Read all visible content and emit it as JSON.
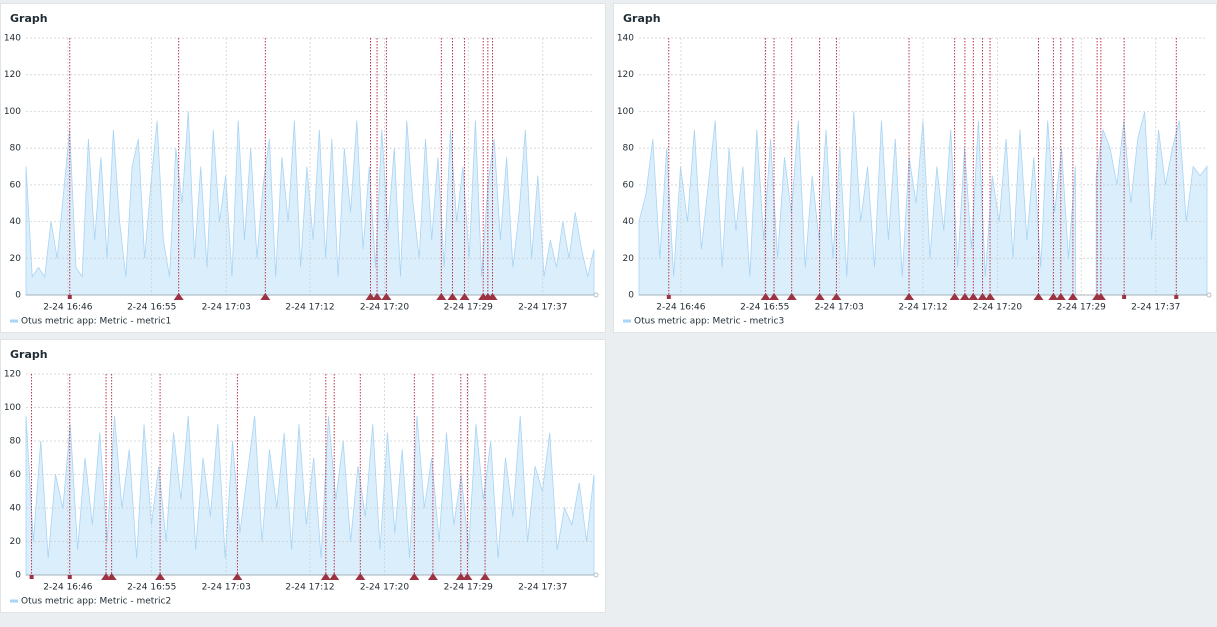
{
  "widgets": [
    {
      "title": "Graph",
      "legend": "Otus metric app: Metric - metric1",
      "ylim": [
        0,
        140
      ],
      "yticks": [
        0,
        20,
        40,
        60,
        80,
        100,
        120,
        140
      ],
      "xlim": [
        1001.5,
        1062.5
      ],
      "xticks": [
        {
          "value": 1006,
          "label": "2-24 16:46"
        },
        {
          "value": 1015,
          "label": "2-24 16:55"
        },
        {
          "value": 1023,
          "label": "2-24 17:03"
        },
        {
          "value": 1032,
          "label": "2-24 17:12"
        },
        {
          "value": 1040,
          "label": "2-24 17:20"
        },
        {
          "value": 1049,
          "label": "2-24 17:29"
        },
        {
          "value": 1057,
          "label": "2-24 17:37"
        }
      ],
      "series": {
        "color": "#a8d4f5",
        "fill": "#dbeefc",
        "values": [
          70,
          10,
          15,
          10,
          40,
          20,
          55,
          90,
          15,
          10,
          85,
          30,
          75,
          20,
          90,
          40,
          10,
          70,
          85,
          20,
          60,
          95,
          30,
          10,
          80,
          50,
          100,
          20,
          70,
          15,
          90,
          40,
          65,
          10,
          95,
          30,
          80,
          20,
          60,
          85,
          10,
          75,
          40,
          95,
          15,
          70,
          30,
          90,
          20,
          85,
          10,
          80,
          45,
          95,
          25,
          70,
          15,
          90,
          35,
          80,
          10,
          95,
          50,
          20,
          85,
          30,
          75,
          15,
          90,
          40,
          70,
          20,
          95,
          10,
          60,
          85,
          30,
          75,
          15,
          45,
          90,
          20,
          65,
          10,
          30,
          15,
          40,
          20,
          45,
          25,
          10,
          25
        ]
      },
      "events": [
        {
          "x": 1006.2,
          "shape": "square"
        },
        {
          "x": 1017.9,
          "shape": "triangle"
        },
        {
          "x": 1027.2,
          "shape": "triangle"
        },
        {
          "x": 1038.5,
          "shape": "triangle"
        },
        {
          "x": 1039.2,
          "shape": "triangle"
        },
        {
          "x": 1040.2,
          "shape": "triangle"
        },
        {
          "x": 1046.1,
          "shape": "triangle"
        },
        {
          "x": 1047.3,
          "shape": "triangle"
        },
        {
          "x": 1048.6,
          "shape": "triangle"
        },
        {
          "x": 1050.6,
          "shape": "triangle"
        },
        {
          "x": 1051.1,
          "shape": "triangle"
        },
        {
          "x": 1051.6,
          "shape": "triangle"
        }
      ]
    },
    {
      "title": "Graph",
      "legend": "Otus metric app: Metric - metric3",
      "ylim": [
        0,
        140
      ],
      "yticks": [
        0,
        20,
        40,
        60,
        80,
        100,
        120,
        140
      ],
      "xlim": [
        1001.5,
        1062.5
      ],
      "xticks": [
        {
          "value": 1006,
          "label": "2-24 16:46"
        },
        {
          "value": 1015,
          "label": "2-24 16:55"
        },
        {
          "value": 1023,
          "label": "2-24 17:03"
        },
        {
          "value": 1032,
          "label": "2-24 17:12"
        },
        {
          "value": 1040,
          "label": "2-24 17:20"
        },
        {
          "value": 1049,
          "label": "2-24 17:29"
        },
        {
          "value": 1057,
          "label": "2-24 17:37"
        }
      ],
      "series": {
        "color": "#a8d4f5",
        "fill": "#dbeefc",
        "values": [
          40,
          55,
          85,
          20,
          80,
          10,
          70,
          40,
          90,
          25,
          60,
          95,
          15,
          80,
          35,
          70,
          10,
          90,
          30,
          85,
          20,
          75,
          45,
          95,
          15,
          65,
          30,
          90,
          20,
          80,
          10,
          100,
          40,
          70,
          15,
          95,
          30,
          85,
          10,
          75,
          50,
          95,
          20,
          70,
          35,
          90,
          15,
          80,
          25,
          95,
          10,
          65,
          40,
          85,
          20,
          90,
          30,
          75,
          15,
          95,
          45,
          80,
          20,
          70,
          null,
          null,
          65,
          90,
          80,
          60,
          95,
          50,
          85,
          100,
          30,
          90,
          60,
          80,
          95,
          40,
          70,
          65,
          70
        ]
      },
      "events": [
        {
          "x": 1004.7,
          "shape": "square"
        },
        {
          "x": 1015.1,
          "shape": "triangle"
        },
        {
          "x": 1016.0,
          "shape": "triangle"
        },
        {
          "x": 1017.9,
          "shape": "triangle"
        },
        {
          "x": 1020.9,
          "shape": "triangle"
        },
        {
          "x": 1022.7,
          "shape": "triangle"
        },
        {
          "x": 1030.5,
          "shape": "triangle"
        },
        {
          "x": 1035.4,
          "shape": "triangle"
        },
        {
          "x": 1036.5,
          "shape": "triangle"
        },
        {
          "x": 1037.4,
          "shape": "triangle"
        },
        {
          "x": 1038.4,
          "shape": "triangle"
        },
        {
          "x": 1039.2,
          "shape": "triangle"
        },
        {
          "x": 1044.4,
          "shape": "triangle"
        },
        {
          "x": 1046.0,
          "shape": "triangle"
        },
        {
          "x": 1046.8,
          "shape": "triangle"
        },
        {
          "x": 1048.1,
          "shape": "triangle"
        },
        {
          "x": 1050.7,
          "shape": "triangle"
        },
        {
          "x": 1051.1,
          "shape": "triangle"
        },
        {
          "x": 1053.6,
          "shape": "square"
        },
        {
          "x": 1059.2,
          "shape": "square"
        }
      ]
    },
    {
      "title": "Graph",
      "legend": "Otus metric app: Metric - metric2",
      "ylim": [
        0,
        120
      ],
      "yticks": [
        0,
        20,
        40,
        60,
        80,
        100,
        120
      ],
      "xlim": [
        1001.5,
        1062.5
      ],
      "xticks": [
        {
          "value": 1006,
          "label": "2-24 16:46"
        },
        {
          "value": 1015,
          "label": "2-24 16:55"
        },
        {
          "value": 1023,
          "label": "2-24 17:03"
        },
        {
          "value": 1032,
          "label": "2-24 17:12"
        },
        {
          "value": 1040,
          "label": "2-24 17:20"
        },
        {
          "value": 1049,
          "label": "2-24 17:29"
        },
        {
          "value": 1057,
          "label": "2-24 17:37"
        }
      ],
      "series": {
        "color": "#a8d4f5",
        "fill": "#dbeefc",
        "values": [
          95,
          20,
          80,
          10,
          60,
          40,
          90,
          15,
          70,
          30,
          85,
          20,
          95,
          40,
          75,
          10,
          90,
          30,
          65,
          20,
          85,
          45,
          95,
          15,
          70,
          35,
          90,
          10,
          80,
          25,
          60,
          95,
          20,
          75,
          40,
          85,
          15,
          90,
          30,
          70,
          10,
          95,
          45,
          80,
          20,
          65,
          35,
          90,
          15,
          85,
          25,
          75,
          10,
          95,
          40,
          70,
          20,
          85,
          30,
          60,
          15,
          90,
          45,
          80,
          10,
          70,
          35,
          95,
          20,
          65,
          50,
          85,
          15,
          40,
          30,
          55,
          20,
          60
        ]
      },
      "events": [
        {
          "x": 1002.1,
          "shape": "square"
        },
        {
          "x": 1006.2,
          "shape": "square"
        },
        {
          "x": 1010.1,
          "shape": "triangle"
        },
        {
          "x": 1010.7,
          "shape": "triangle"
        },
        {
          "x": 1015.9,
          "shape": "triangle"
        },
        {
          "x": 1024.2,
          "shape": "triangle"
        },
        {
          "x": 1033.7,
          "shape": "triangle"
        },
        {
          "x": 1034.6,
          "shape": "triangle"
        },
        {
          "x": 1037.4,
          "shape": "triangle"
        },
        {
          "x": 1043.2,
          "shape": "triangle"
        },
        {
          "x": 1045.2,
          "shape": "triangle"
        },
        {
          "x": 1048.2,
          "shape": "triangle"
        },
        {
          "x": 1048.9,
          "shape": "triangle"
        },
        {
          "x": 1050.8,
          "shape": "triangle"
        }
      ]
    }
  ]
}
